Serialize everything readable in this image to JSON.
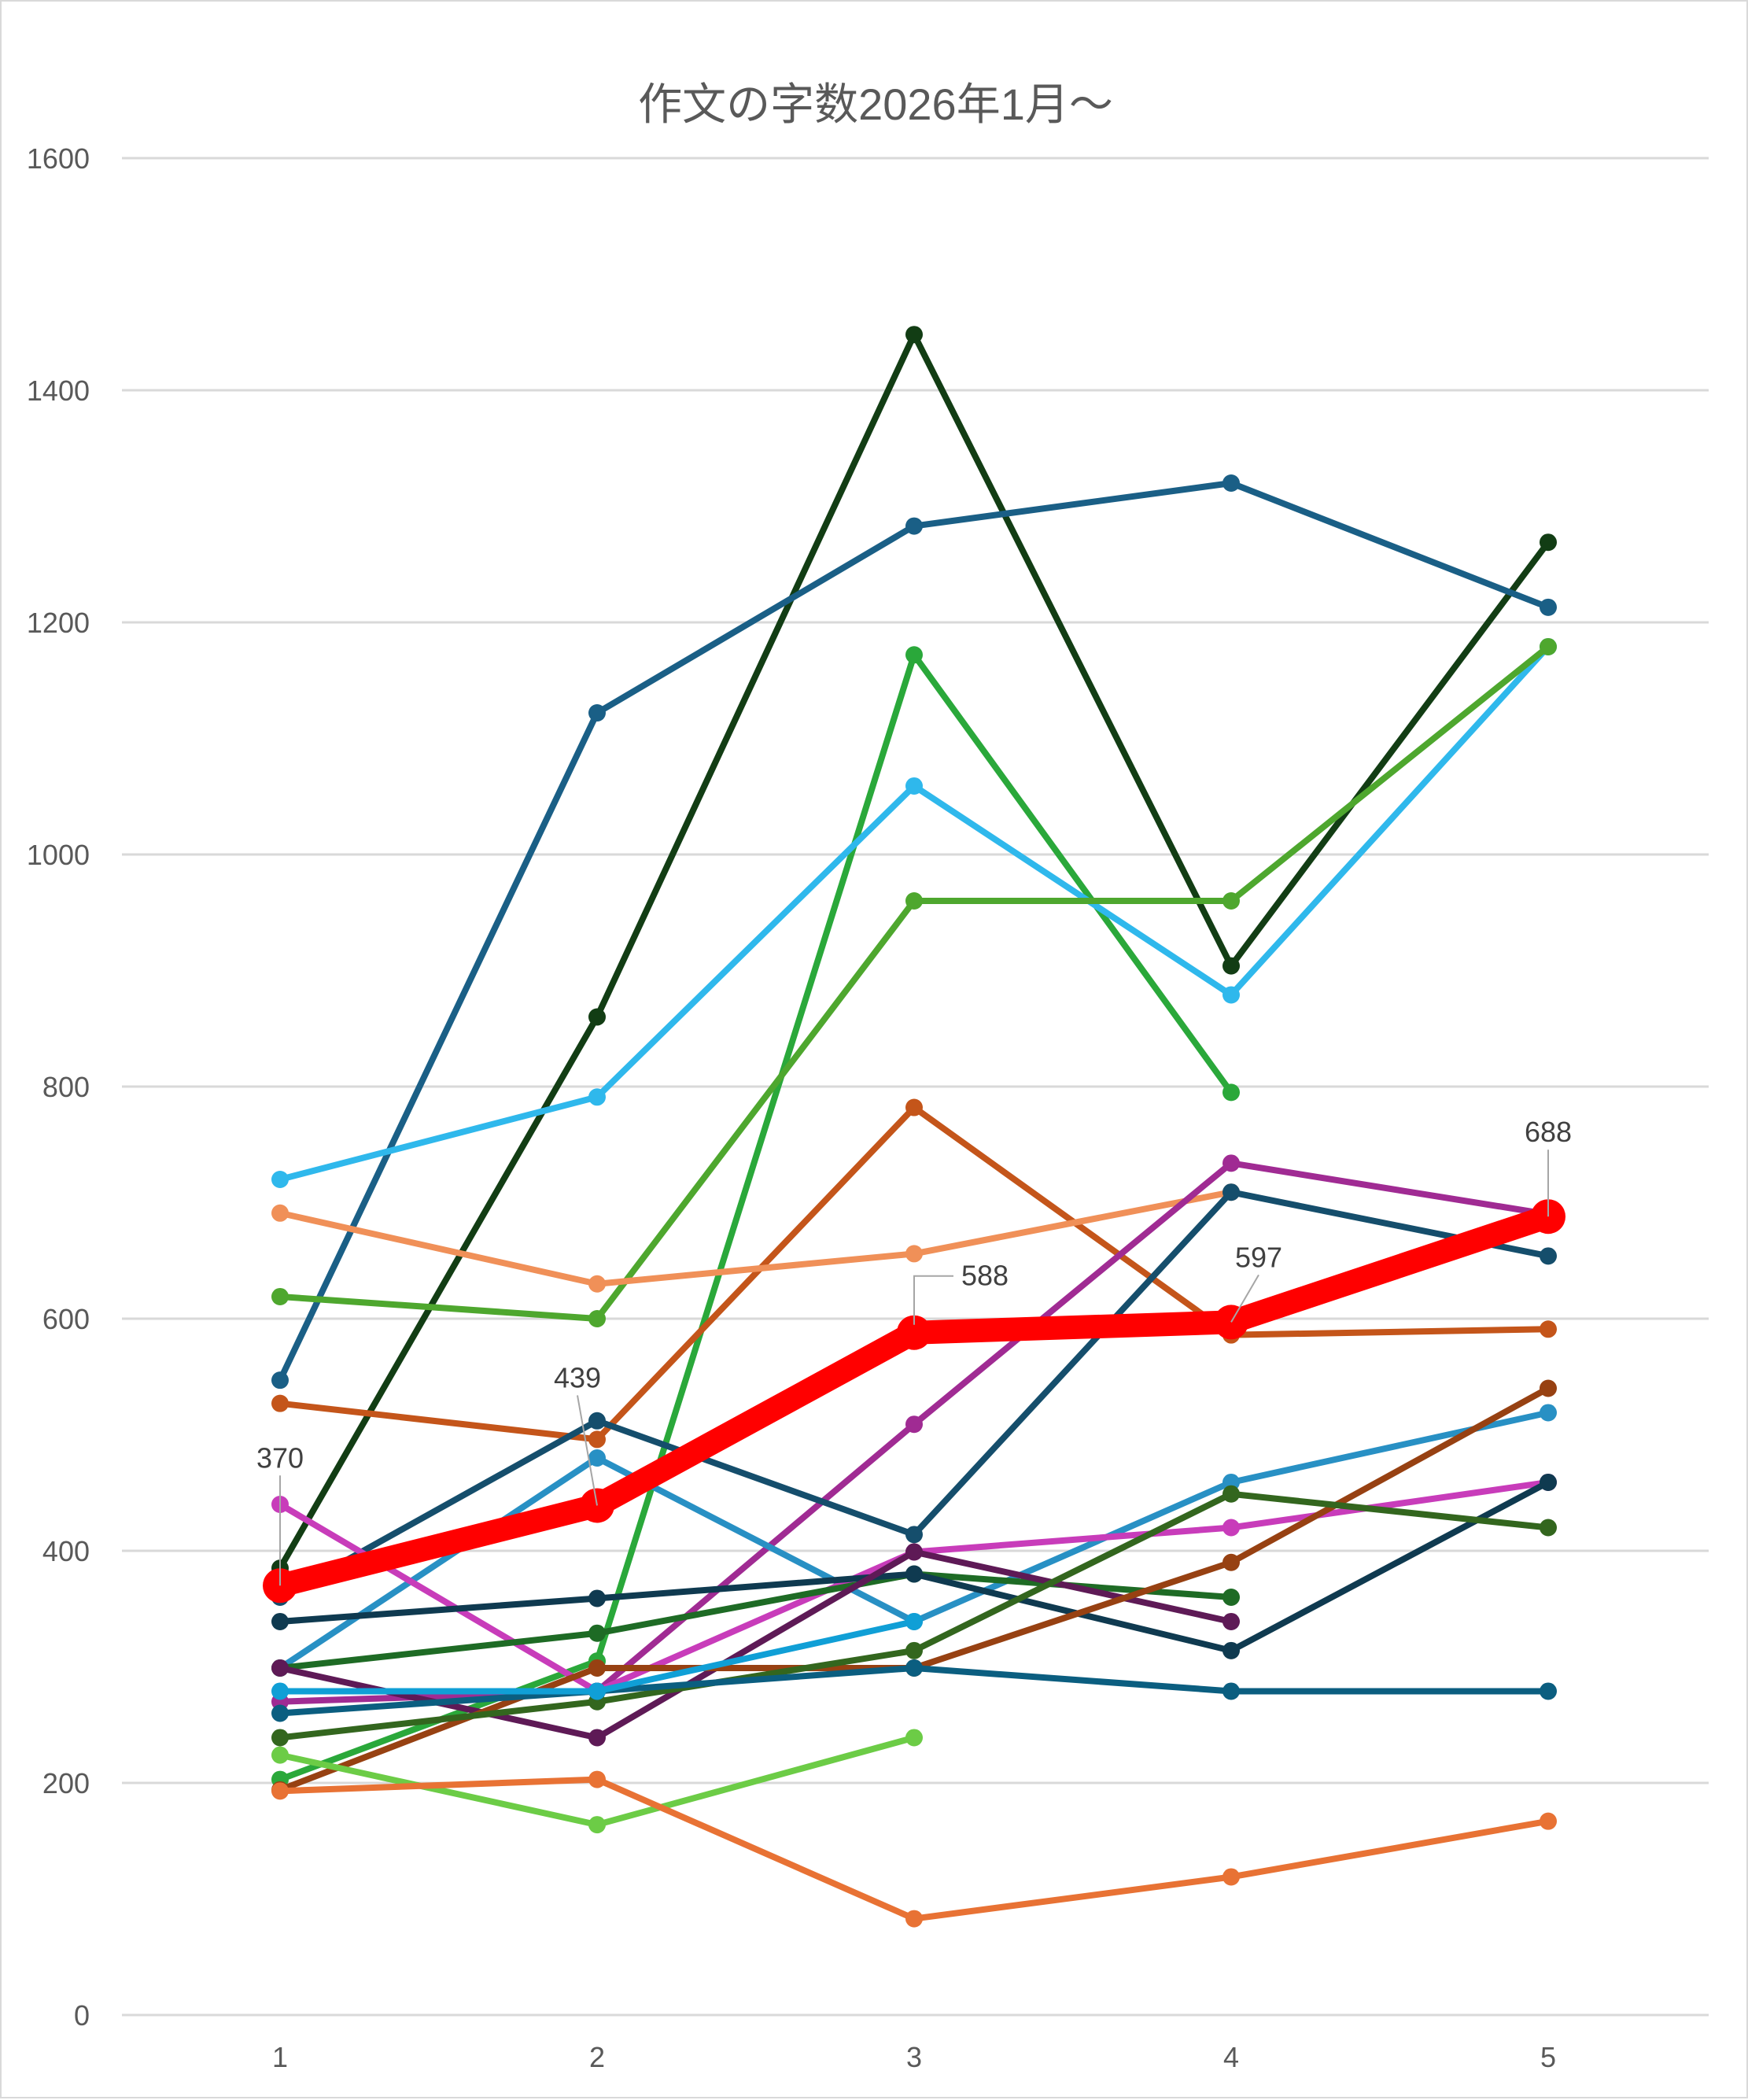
{
  "chart_data": {
    "type": "line",
    "title": "作文の字数2026年1月～",
    "xlabel": "",
    "ylabel": "",
    "categories": [
      "1",
      "2",
      "3",
      "4",
      "5"
    ],
    "ylim": [
      0,
      1600
    ],
    "yticks": [
      "0",
      "200",
      "400",
      "600",
      "800",
      "1000",
      "1200",
      "1400",
      "1600"
    ],
    "grid": true,
    "legend": "none",
    "series": [
      {
        "color": "#123d14",
        "values": [
          385,
          860,
          1448,
          904,
          1269
        ]
      },
      {
        "color": "#1a5f86",
        "values": [
          547,
          1122,
          1283,
          1320,
          1213
        ]
      },
      {
        "color": "#2aa83a",
        "values": [
          203,
          305,
          1172,
          795,
          null
        ]
      },
      {
        "color": "#2fb8ec",
        "values": [
          720,
          791,
          1059,
          879,
          1179
        ]
      },
      {
        "color": "#4ea72e",
        "values": [
          619,
          600,
          960,
          960,
          1179
        ]
      },
      {
        "color": "#c4551a",
        "values": [
          527,
          496,
          782,
          586,
          591
        ]
      },
      {
        "color": "#f09058",
        "values": [
          691,
          630,
          656,
          709,
          null
        ]
      },
      {
        "color": "#a02b93",
        "values": [
          270,
          279,
          509,
          734,
          690
        ]
      },
      {
        "color": "#154e6c",
        "values": [
          360,
          512,
          414,
          709,
          654
        ]
      },
      {
        "color": "#2890c4",
        "values": [
          299,
          480,
          339,
          459,
          519
        ]
      },
      {
        "color": "#c83cba",
        "values": [
          440,
          279,
          399,
          420,
          459
        ]
      },
      {
        "color": "#1e6b25",
        "values": [
          299,
          329,
          380,
          360,
          null
        ]
      },
      {
        "color": "#0f3a50",
        "values": [
          339,
          359,
          380,
          314,
          459
        ]
      },
      {
        "color": "#5e1a56",
        "values": [
          299,
          239,
          399,
          339,
          null
        ]
      },
      {
        "color": "#974112",
        "values": [
          194,
          299,
          299,
          390,
          540
        ]
      },
      {
        "color": "#33661e",
        "values": [
          239,
          270,
          314,
          449,
          420
        ]
      },
      {
        "color": "#0b5e80",
        "values": [
          260,
          279,
          299,
          279,
          279
        ]
      },
      {
        "color": "#109fd6",
        "values": [
          279,
          279,
          339,
          null,
          null
        ]
      },
      {
        "color": "#6ccc46",
        "values": [
          224,
          164,
          239,
          null,
          null
        ]
      },
      {
        "color": "#e87234",
        "values": [
          193,
          203,
          83,
          119,
          167
        ]
      },
      {
        "color": "#ff0000",
        "values": [
          370,
          439,
          588,
          597,
          688
        ],
        "highlight": true,
        "data_labels": [
          "370",
          "439",
          "588",
          "597",
          "688"
        ]
      }
    ]
  }
}
